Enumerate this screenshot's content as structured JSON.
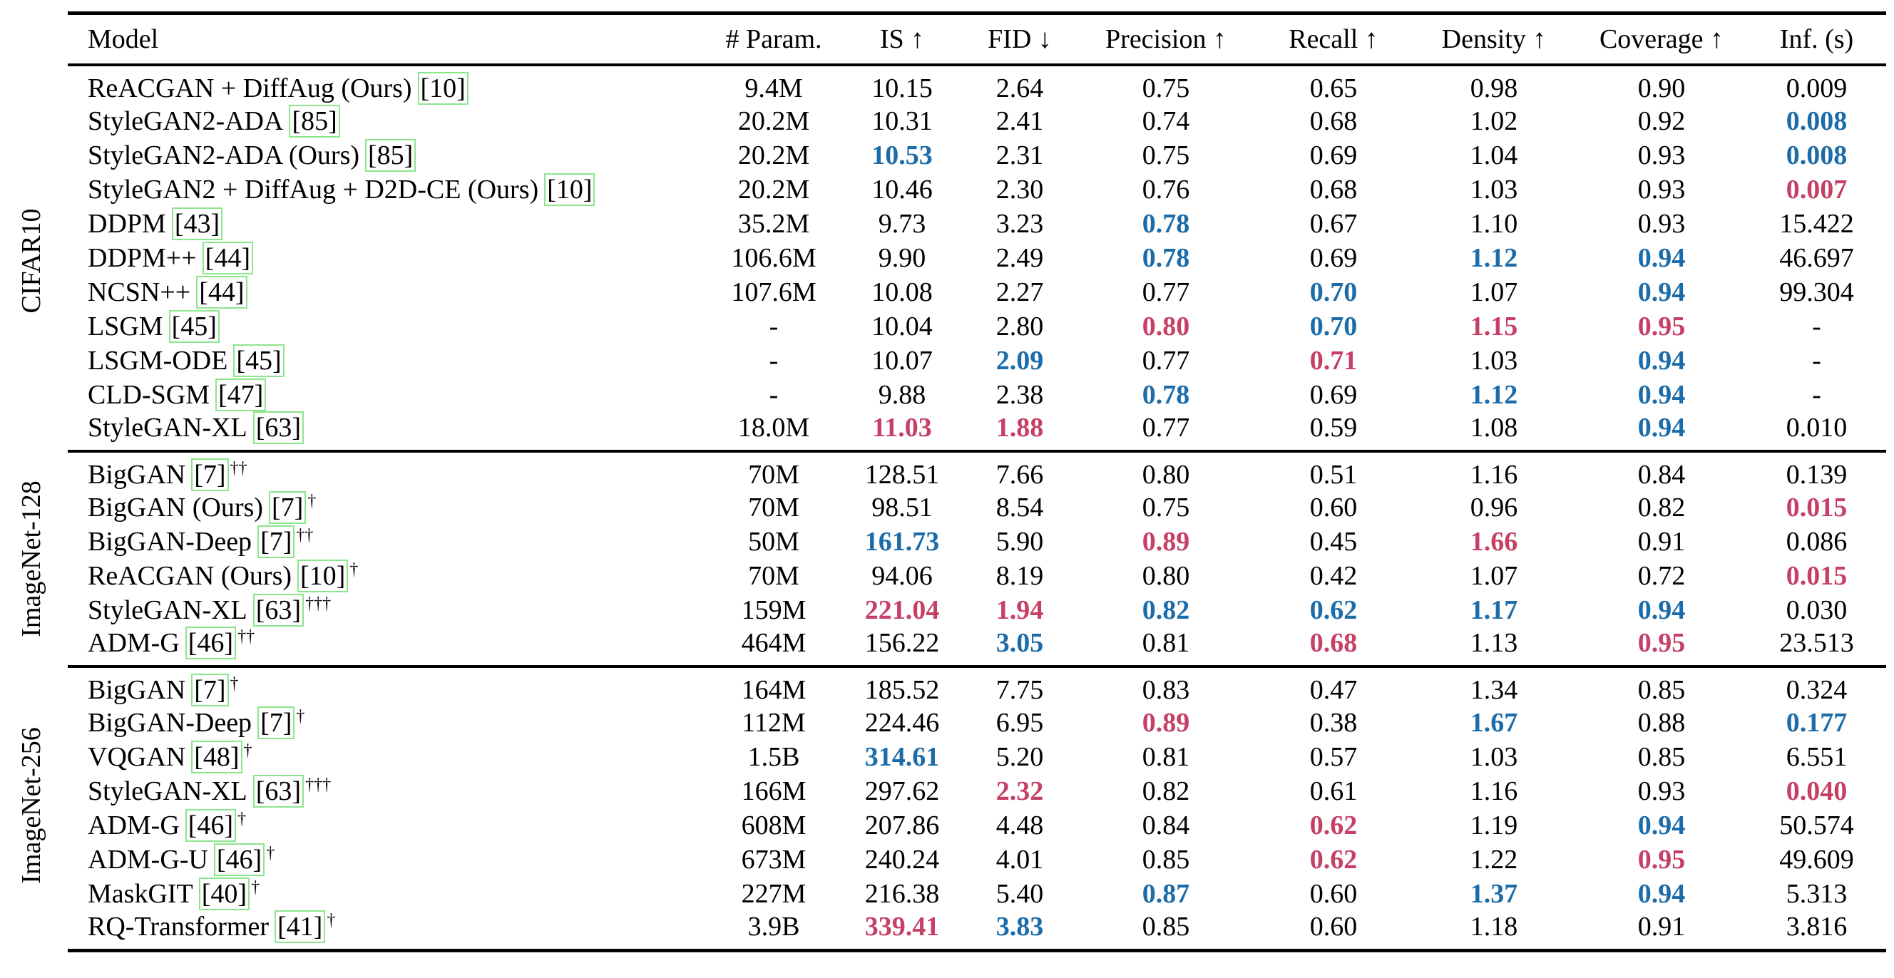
{
  "palette": {
    "best_color": "#c64066",
    "second_best_color": "#1b6ca9",
    "citation_box_color": "#8ce68c",
    "text_color": "#000000"
  },
  "columns": [
    "Model",
    "# Param.",
    "IS ↑",
    "FID ↓",
    "Precision ↑",
    "Recall ↑",
    "Density ↑",
    "Coverage ↑",
    "Inf. (s)"
  ],
  "sections": [
    {
      "label": "CIFAR10",
      "rows": [
        {
          "model": {
            "name": "ReACGAN + DiffAug (Ours)",
            "cite": "[10]",
            "sup": ""
          },
          "values": [
            "9.4M",
            "10.15",
            "2.64",
            "0.75",
            "0.65",
            "0.98",
            "0.90",
            "0.009"
          ],
          "colors": [
            "",
            "",
            "",
            "",
            "",
            "",
            "",
            ""
          ]
        },
        {
          "model": {
            "name": "StyleGAN2-ADA",
            "cite": "[85]",
            "sup": ""
          },
          "values": [
            "20.2M",
            "10.31",
            "2.41",
            "0.74",
            "0.68",
            "1.02",
            "0.92",
            "0.008"
          ],
          "colors": [
            "",
            "",
            "",
            "",
            "",
            "",
            "",
            "blue"
          ]
        },
        {
          "model": {
            "name": "StyleGAN2-ADA (Ours)",
            "cite": "[85]",
            "sup": ""
          },
          "values": [
            "20.2M",
            "10.53",
            "2.31",
            "0.75",
            "0.69",
            "1.04",
            "0.93",
            "0.008"
          ],
          "colors": [
            "",
            "blue",
            "",
            "",
            "",
            "",
            "",
            "blue"
          ]
        },
        {
          "model": {
            "name": "StyleGAN2 + DiffAug + D2D-CE (Ours)",
            "cite": "[10]",
            "sup": ""
          },
          "values": [
            "20.2M",
            "10.46",
            "2.30",
            "0.76",
            "0.68",
            "1.03",
            "0.93",
            "0.007"
          ],
          "colors": [
            "",
            "",
            "",
            "",
            "",
            "",
            "",
            "red"
          ]
        },
        {
          "model": {
            "name": "DDPM",
            "cite": "[43]",
            "sup": ""
          },
          "values": [
            "35.2M",
            "9.73",
            "3.23",
            "0.78",
            "0.67",
            "1.10",
            "0.93",
            "15.422"
          ],
          "colors": [
            "",
            "",
            "",
            "blue",
            "",
            "",
            "",
            ""
          ]
        },
        {
          "model": {
            "name": "DDPM++",
            "cite": "[44]",
            "sup": ""
          },
          "values": [
            "106.6M",
            "9.90",
            "2.49",
            "0.78",
            "0.69",
            "1.12",
            "0.94",
            "46.697"
          ],
          "colors": [
            "",
            "",
            "",
            "blue",
            "",
            "blue",
            "blue",
            ""
          ]
        },
        {
          "model": {
            "name": "NCSN++",
            "cite": "[44]",
            "sup": ""
          },
          "values": [
            "107.6M",
            "10.08",
            "2.27",
            "0.77",
            "0.70",
            "1.07",
            "0.94",
            "99.304"
          ],
          "colors": [
            "",
            "",
            "",
            "",
            "blue",
            "",
            "blue",
            ""
          ]
        },
        {
          "model": {
            "name": "LSGM",
            "cite": "[45]",
            "sup": ""
          },
          "values": [
            "-",
            "10.04",
            "2.80",
            "0.80",
            "0.70",
            "1.15",
            "0.95",
            "-"
          ],
          "colors": [
            "",
            "",
            "",
            "red",
            "blue",
            "red",
            "red",
            ""
          ]
        },
        {
          "model": {
            "name": "LSGM-ODE",
            "cite": "[45]",
            "sup": ""
          },
          "values": [
            "-",
            "10.07",
            "2.09",
            "0.77",
            "0.71",
            "1.03",
            "0.94",
            "-"
          ],
          "colors": [
            "",
            "",
            "blue",
            "",
            "red",
            "",
            "blue",
            ""
          ]
        },
        {
          "model": {
            "name": "CLD-SGM",
            "cite": "[47]",
            "sup": ""
          },
          "values": [
            "-",
            "9.88",
            "2.38",
            "0.78",
            "0.69",
            "1.12",
            "0.94",
            "-"
          ],
          "colors": [
            "",
            "",
            "",
            "blue",
            "",
            "blue",
            "blue",
            ""
          ]
        },
        {
          "model": {
            "name": "StyleGAN-XL",
            "cite": "[63]",
            "sup": ""
          },
          "values": [
            "18.0M",
            "11.03",
            "1.88",
            "0.77",
            "0.59",
            "1.08",
            "0.94",
            "0.010"
          ],
          "colors": [
            "",
            "red",
            "red",
            "",
            "",
            "",
            "blue",
            ""
          ]
        }
      ]
    },
    {
      "label": "ImageNet-128",
      "rows": [
        {
          "model": {
            "name": "BigGAN",
            "cite": "[7]",
            "sup": "††"
          },
          "values": [
            "70M",
            "128.51",
            "7.66",
            "0.80",
            "0.51",
            "1.16",
            "0.84",
            "0.139"
          ],
          "colors": [
            "",
            "",
            "",
            "",
            "",
            "",
            "",
            ""
          ]
        },
        {
          "model": {
            "name": "BigGAN (Ours)",
            "cite": "[7]",
            "sup": "†"
          },
          "values": [
            "70M",
            "98.51",
            "8.54",
            "0.75",
            "0.60",
            "0.96",
            "0.82",
            "0.015"
          ],
          "colors": [
            "",
            "",
            "",
            "",
            "",
            "",
            "",
            "red"
          ]
        },
        {
          "model": {
            "name": "BigGAN-Deep",
            "cite": "[7]",
            "sup": "††"
          },
          "values": [
            "50M",
            "161.73",
            "5.90",
            "0.89",
            "0.45",
            "1.66",
            "0.91",
            "0.086"
          ],
          "colors": [
            "",
            "blue",
            "",
            "red",
            "",
            "red",
            "",
            ""
          ]
        },
        {
          "model": {
            "name": "ReACGAN (Ours)",
            "cite": "[10]",
            "sup": "†"
          },
          "values": [
            "70M",
            "94.06",
            "8.19",
            "0.80",
            "0.42",
            "1.07",
            "0.72",
            "0.015"
          ],
          "colors": [
            "",
            "",
            "",
            "",
            "",
            "",
            "",
            "red"
          ]
        },
        {
          "model": {
            "name": "StyleGAN-XL",
            "cite": "[63]",
            "sup": "†††"
          },
          "values": [
            "159M",
            "221.04",
            "1.94",
            "0.82",
            "0.62",
            "1.17",
            "0.94",
            "0.030"
          ],
          "colors": [
            "",
            "red",
            "red",
            "blue",
            "blue",
            "blue",
            "blue",
            ""
          ]
        },
        {
          "model": {
            "name": "ADM-G",
            "cite": "[46]",
            "sup": "††"
          },
          "values": [
            "464M",
            "156.22",
            "3.05",
            "0.81",
            "0.68",
            "1.13",
            "0.95",
            "23.513"
          ],
          "colors": [
            "",
            "",
            "blue",
            "",
            "red",
            "",
            "red",
            ""
          ]
        }
      ]
    },
    {
      "label": "ImageNet-256",
      "rows": [
        {
          "model": {
            "name": "BigGAN",
            "cite": "[7]",
            "sup": "†"
          },
          "values": [
            "164M",
            "185.52",
            "7.75",
            "0.83",
            "0.47",
            "1.34",
            "0.85",
            "0.324"
          ],
          "colors": [
            "",
            "",
            "",
            "",
            "",
            "",
            "",
            ""
          ]
        },
        {
          "model": {
            "name": "BigGAN-Deep",
            "cite": "[7]",
            "sup": "†"
          },
          "values": [
            "112M",
            "224.46",
            "6.95",
            "0.89",
            "0.38",
            "1.67",
            "0.88",
            "0.177"
          ],
          "colors": [
            "",
            "",
            "",
            "red",
            "",
            "blue",
            "",
            "blue"
          ]
        },
        {
          "model": {
            "name": "VQGAN",
            "cite": "[48]",
            "sup": "†"
          },
          "values": [
            "1.5B",
            "314.61",
            "5.20",
            "0.81",
            "0.57",
            "1.03",
            "0.85",
            "6.551"
          ],
          "colors": [
            "",
            "blue",
            "",
            "",
            "",
            "",
            "",
            ""
          ]
        },
        {
          "model": {
            "name": "StyleGAN-XL",
            "cite": "[63]",
            "sup": "†††"
          },
          "values": [
            "166M",
            "297.62",
            "2.32",
            "0.82",
            "0.61",
            "1.16",
            "0.93",
            "0.040"
          ],
          "colors": [
            "",
            "",
            "red",
            "",
            "",
            "",
            "",
            "red"
          ]
        },
        {
          "model": {
            "name": "ADM-G",
            "cite": "[46]",
            "sup": "†"
          },
          "values": [
            "608M",
            "207.86",
            "4.48",
            "0.84",
            "0.62",
            "1.19",
            "0.94",
            "50.574"
          ],
          "colors": [
            "",
            "",
            "",
            "",
            "red",
            "",
            "blue",
            ""
          ]
        },
        {
          "model": {
            "name": "ADM-G-U",
            "cite": "[46]",
            "sup": "†"
          },
          "values": [
            "673M",
            "240.24",
            "4.01",
            "0.85",
            "0.62",
            "1.22",
            "0.95",
            "49.609"
          ],
          "colors": [
            "",
            "",
            "",
            "",
            "red",
            "",
            "red",
            ""
          ]
        },
        {
          "model": {
            "name": "MaskGIT",
            "cite": "[40]",
            "sup": "†"
          },
          "values": [
            "227M",
            "216.38",
            "5.40",
            "0.87",
            "0.60",
            "1.37",
            "0.94",
            "5.313"
          ],
          "colors": [
            "",
            "",
            "",
            "blue",
            "",
            "blue",
            "blue",
            ""
          ]
        },
        {
          "model": {
            "name": "RQ-Transformer",
            "cite": "[41]",
            "sup": "†"
          },
          "values": [
            "3.9B",
            "339.41",
            "3.83",
            "0.85",
            "0.60",
            "1.18",
            "0.91",
            "3.816"
          ],
          "colors": [
            "",
            "red",
            "blue",
            "",
            "",
            "",
            "",
            ""
          ]
        }
      ]
    }
  ]
}
